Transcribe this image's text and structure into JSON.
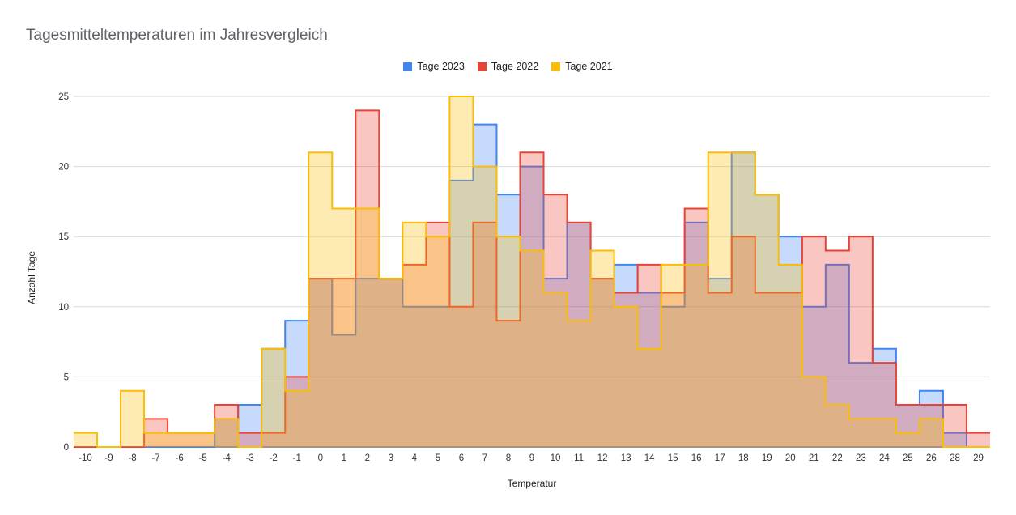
{
  "chart_data": {
    "type": "area",
    "title": "Tagesmitteltemperaturen im Jahresvergleich",
    "xlabel": "Temperatur",
    "ylabel": "Anzahl Tage",
    "ylim": [
      0,
      25
    ],
    "yticks": [
      "0",
      "5",
      "10",
      "15",
      "20",
      "25"
    ],
    "grid": true,
    "legend_position": "top",
    "categories": [
      "-10",
      "-9",
      "-8",
      "-7",
      "-6",
      "-5",
      "-4",
      "-3",
      "-2",
      "-1",
      "0",
      "1",
      "2",
      "3",
      "4",
      "5",
      "6",
      "7",
      "8",
      "9",
      "10",
      "11",
      "12",
      "13",
      "14",
      "15",
      "16",
      "17",
      "18",
      "19",
      "20",
      "21",
      "22",
      "23",
      "24",
      "25",
      "26",
      "28",
      "29"
    ],
    "series": [
      {
        "name": "Tage 2023",
        "color": "#4285F4",
        "values": [
          0,
          0,
          0,
          0,
          0,
          0,
          2,
          3,
          7,
          9,
          12,
          8,
          12,
          12,
          10,
          10,
          19,
          23,
          18,
          20,
          12,
          16,
          12,
          13,
          11,
          10,
          16,
          12,
          21,
          18,
          15,
          10,
          13,
          6,
          7,
          3,
          4,
          1,
          0
        ]
      },
      {
        "name": "Tage 2022",
        "color": "#EA4335",
        "values": [
          0,
          0,
          0,
          2,
          1,
          1,
          3,
          1,
          1,
          5,
          12,
          12,
          24,
          12,
          13,
          16,
          10,
          16,
          9,
          21,
          18,
          16,
          12,
          11,
          13,
          11,
          17,
          11,
          15,
          11,
          11,
          15,
          14,
          15,
          6,
          3,
          3,
          3,
          1
        ]
      },
      {
        "name": "Tage 2021",
        "color": "#FBBC04",
        "values": [
          1,
          0,
          4,
          1,
          1,
          1,
          2,
          0,
          7,
          4,
          21,
          17,
          17,
          12,
          16,
          15,
          25,
          20,
          15,
          14,
          11,
          9,
          14,
          10,
          7,
          13,
          13,
          21,
          21,
          18,
          13,
          5,
          3,
          2,
          2,
          1,
          2,
          0,
          0
        ]
      }
    ]
  },
  "legend": {
    "s0": "Tage 2023",
    "s1": "Tage 2022",
    "s2": "Tage 2021"
  }
}
